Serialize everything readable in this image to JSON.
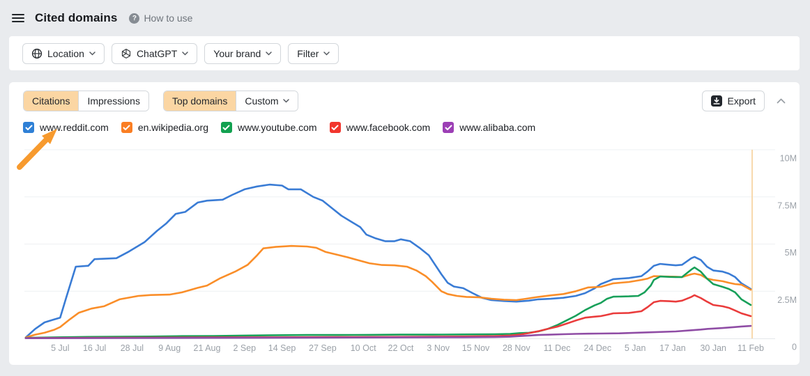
{
  "header": {
    "title": "Cited domains",
    "help_label": "How to use"
  },
  "filter_bar": {
    "buttons": [
      {
        "label": "Location",
        "icon": "globe-icon"
      },
      {
        "label": "ChatGPT",
        "icon": "chatgpt-icon"
      },
      {
        "label": "Your brand",
        "icon": null
      },
      {
        "label": "Filter",
        "icon": null
      }
    ]
  },
  "toolbar": {
    "metric_tabs": [
      {
        "label": "Citations",
        "active": true
      },
      {
        "label": "Impressions",
        "active": false
      }
    ],
    "domain_tabs": [
      {
        "label": "Top domains",
        "active": true
      },
      {
        "label": "Custom",
        "active": false,
        "has_chevron": true
      }
    ],
    "export_label": "Export"
  },
  "legend": {
    "items": [
      {
        "label": "www.reddit.com",
        "color": "#2f80d6",
        "checked": true
      },
      {
        "label": "en.wikipedia.org",
        "color": "#fa7e23",
        "checked": true
      },
      {
        "label": "www.youtube.com",
        "color": "#12a150",
        "checked": true
      },
      {
        "label": "www.facebook.com",
        "color": "#f2362e",
        "checked": true
      },
      {
        "label": "www.alibaba.com",
        "color": "#9c3fb5",
        "checked": true
      }
    ]
  },
  "annotation": {
    "type": "arrow",
    "points_to": "www.reddit.com",
    "color": "#f79a2e"
  },
  "chart_data": {
    "type": "line",
    "unit": "citations",
    "ylim": [
      0,
      10000000
    ],
    "grid": true,
    "legend_position": "top",
    "x_max_day": 232,
    "x_ticks": [
      {
        "label": "5 Jul",
        "day": 11
      },
      {
        "label": "16 Jul",
        "day": 22
      },
      {
        "label": "28 Jul",
        "day": 34
      },
      {
        "label": "9 Aug",
        "day": 46
      },
      {
        "label": "21 Aug",
        "day": 58
      },
      {
        "label": "2 Sep",
        "day": 70
      },
      {
        "label": "14 Sep",
        "day": 82
      },
      {
        "label": "27 Sep",
        "day": 95
      },
      {
        "label": "10 Oct",
        "day": 108
      },
      {
        "label": "22 Oct",
        "day": 120
      },
      {
        "label": "3 Nov",
        "day": 132
      },
      {
        "label": "15 Nov",
        "day": 144
      },
      {
        "label": "28 Nov",
        "day": 157
      },
      {
        "label": "11 Dec",
        "day": 170
      },
      {
        "label": "24 Dec",
        "day": 183
      },
      {
        "label": "5 Jan",
        "day": 195
      },
      {
        "label": "17 Jan",
        "day": 207
      },
      {
        "label": "30 Jan",
        "day": 220
      },
      {
        "label": "11 Feb",
        "day": 232
      }
    ],
    "y_ticks": [
      {
        "label": "0",
        "value": 0
      },
      {
        "label": "2.5M",
        "value": 2.5
      },
      {
        "label": "5M",
        "value": 5
      },
      {
        "label": "7.5M",
        "value": 7.5
      },
      {
        "label": "10M",
        "value": 10
      }
    ],
    "marker": {
      "day": 232,
      "color": "#f8d9ad"
    },
    "series": [
      {
        "name": "www.reddit.com",
        "color": "#3a7cd5",
        "values_unit": "millions",
        "points": [
          [
            0,
            0.05
          ],
          [
            3,
            0.5
          ],
          [
            6,
            0.85
          ],
          [
            9,
            1.0
          ],
          [
            11,
            1.1
          ],
          [
            13,
            2.2
          ],
          [
            16,
            3.8
          ],
          [
            20,
            3.85
          ],
          [
            22,
            4.2
          ],
          [
            29,
            4.25
          ],
          [
            33,
            4.6
          ],
          [
            38,
            5.1
          ],
          [
            42,
            5.7
          ],
          [
            45,
            6.1
          ],
          [
            48,
            6.6
          ],
          [
            51,
            6.7
          ],
          [
            55,
            7.2
          ],
          [
            58,
            7.3
          ],
          [
            63,
            7.35
          ],
          [
            66,
            7.6
          ],
          [
            70,
            7.9
          ],
          [
            74,
            8.05
          ],
          [
            78,
            8.15
          ],
          [
            82,
            8.1
          ],
          [
            84,
            7.9
          ],
          [
            88,
            7.9
          ],
          [
            92,
            7.5
          ],
          [
            95,
            7.3
          ],
          [
            98,
            6.9
          ],
          [
            101,
            6.5
          ],
          [
            104,
            6.2
          ],
          [
            107,
            5.9
          ],
          [
            109,
            5.5
          ],
          [
            112,
            5.3
          ],
          [
            115,
            5.15
          ],
          [
            118,
            5.15
          ],
          [
            120,
            5.25
          ],
          [
            123,
            5.15
          ],
          [
            126,
            4.8
          ],
          [
            129,
            4.4
          ],
          [
            131,
            3.9
          ],
          [
            133,
            3.4
          ],
          [
            135,
            2.95
          ],
          [
            137,
            2.75
          ],
          [
            140,
            2.66
          ],
          [
            143,
            2.4
          ],
          [
            146,
            2.15
          ],
          [
            149,
            2.03
          ],
          [
            153,
            1.98
          ],
          [
            157,
            1.95
          ],
          [
            161,
            2.0
          ],
          [
            164,
            2.07
          ],
          [
            168,
            2.1
          ],
          [
            172,
            2.15
          ],
          [
            176,
            2.25
          ],
          [
            179,
            2.4
          ],
          [
            182,
            2.65
          ],
          [
            184,
            2.88
          ],
          [
            188,
            3.14
          ],
          [
            193,
            3.2
          ],
          [
            197,
            3.3
          ],
          [
            199,
            3.55
          ],
          [
            201,
            3.85
          ],
          [
            203,
            3.95
          ],
          [
            206,
            3.9
          ],
          [
            208,
            3.87
          ],
          [
            210,
            3.9
          ],
          [
            213,
            4.25
          ],
          [
            214,
            4.32
          ],
          [
            216,
            4.16
          ],
          [
            218,
            3.8
          ],
          [
            220,
            3.6
          ],
          [
            223,
            3.54
          ],
          [
            225,
            3.43
          ],
          [
            227,
            3.25
          ],
          [
            229,
            2.92
          ],
          [
            232,
            2.62
          ]
        ]
      },
      {
        "name": "en.wikipedia.org",
        "color": "#fa8e29",
        "values_unit": "millions",
        "points": [
          [
            0,
            0.05
          ],
          [
            3,
            0.2
          ],
          [
            6,
            0.3
          ],
          [
            9,
            0.45
          ],
          [
            11,
            0.6
          ],
          [
            14,
            1.0
          ],
          [
            17,
            1.36
          ],
          [
            21,
            1.58
          ],
          [
            25,
            1.7
          ],
          [
            30,
            2.07
          ],
          [
            36,
            2.25
          ],
          [
            40,
            2.3
          ],
          [
            46,
            2.32
          ],
          [
            50,
            2.44
          ],
          [
            55,
            2.68
          ],
          [
            58,
            2.8
          ],
          [
            62,
            3.17
          ],
          [
            67,
            3.54
          ],
          [
            71,
            3.9
          ],
          [
            74,
            4.4
          ],
          [
            76,
            4.77
          ],
          [
            80,
            4.85
          ],
          [
            85,
            4.9
          ],
          [
            90,
            4.87
          ],
          [
            93,
            4.8
          ],
          [
            96,
            4.58
          ],
          [
            99,
            4.46
          ],
          [
            103,
            4.3
          ],
          [
            106,
            4.16
          ],
          [
            110,
            3.98
          ],
          [
            114,
            3.89
          ],
          [
            118,
            3.87
          ],
          [
            122,
            3.8
          ],
          [
            125,
            3.6
          ],
          [
            128,
            3.3
          ],
          [
            130,
            3.0
          ],
          [
            133,
            2.5
          ],
          [
            135,
            2.35
          ],
          [
            138,
            2.25
          ],
          [
            141,
            2.2
          ],
          [
            145,
            2.18
          ],
          [
            149,
            2.1
          ],
          [
            153,
            2.05
          ],
          [
            157,
            2.03
          ],
          [
            160,
            2.1
          ],
          [
            164,
            2.2
          ],
          [
            168,
            2.28
          ],
          [
            172,
            2.35
          ],
          [
            176,
            2.5
          ],
          [
            180,
            2.7
          ],
          [
            184,
            2.73
          ],
          [
            188,
            2.92
          ],
          [
            193,
            2.99
          ],
          [
            197,
            3.1
          ],
          [
            199,
            3.17
          ],
          [
            201,
            3.3
          ],
          [
            204,
            3.28
          ],
          [
            208,
            3.27
          ],
          [
            210,
            3.25
          ],
          [
            213,
            3.4
          ],
          [
            214,
            3.43
          ],
          [
            216,
            3.36
          ],
          [
            218,
            3.17
          ],
          [
            220,
            3.1
          ],
          [
            223,
            3.03
          ],
          [
            225,
            2.95
          ],
          [
            227,
            2.88
          ],
          [
            229,
            2.85
          ],
          [
            232,
            2.58
          ]
        ]
      },
      {
        "name": "www.youtube.com",
        "color": "#18a05a",
        "values_unit": "millions",
        "points": [
          [
            0,
            0.03
          ],
          [
            10,
            0.06
          ],
          [
            20,
            0.08
          ],
          [
            30,
            0.09
          ],
          [
            40,
            0.1
          ],
          [
            50,
            0.12
          ],
          [
            60,
            0.13
          ],
          [
            70,
            0.15
          ],
          [
            80,
            0.17
          ],
          [
            90,
            0.18
          ],
          [
            100,
            0.18
          ],
          [
            110,
            0.19
          ],
          [
            120,
            0.2
          ],
          [
            130,
            0.2
          ],
          [
            140,
            0.21
          ],
          [
            150,
            0.22
          ],
          [
            155,
            0.24
          ],
          [
            158,
            0.28
          ],
          [
            161,
            0.3
          ],
          [
            164,
            0.37
          ],
          [
            167,
            0.5
          ],
          [
            170,
            0.7
          ],
          [
            173,
            0.95
          ],
          [
            176,
            1.2
          ],
          [
            179,
            1.5
          ],
          [
            182,
            1.75
          ],
          [
            184,
            1.88
          ],
          [
            186,
            2.1
          ],
          [
            188,
            2.21
          ],
          [
            193,
            2.23
          ],
          [
            196,
            2.25
          ],
          [
            198,
            2.44
          ],
          [
            200,
            2.8
          ],
          [
            201,
            3.1
          ],
          [
            203,
            3.28
          ],
          [
            206,
            3.26
          ],
          [
            208,
            3.25
          ],
          [
            210,
            3.25
          ],
          [
            213,
            3.65
          ],
          [
            214,
            3.76
          ],
          [
            216,
            3.54
          ],
          [
            218,
            3.17
          ],
          [
            220,
            2.88
          ],
          [
            223,
            2.73
          ],
          [
            225,
            2.62
          ],
          [
            227,
            2.44
          ],
          [
            229,
            2.07
          ],
          [
            232,
            1.77
          ]
        ]
      },
      {
        "name": "www.facebook.com",
        "color": "#ea3c3c",
        "values_unit": "millions",
        "points": [
          [
            0,
            0.02
          ],
          [
            20,
            0.03
          ],
          [
            40,
            0.04
          ],
          [
            60,
            0.05
          ],
          [
            80,
            0.06
          ],
          [
            100,
            0.07
          ],
          [
            120,
            0.08
          ],
          [
            140,
            0.1
          ],
          [
            150,
            0.12
          ],
          [
            155,
            0.15
          ],
          [
            158,
            0.2
          ],
          [
            161,
            0.28
          ],
          [
            164,
            0.38
          ],
          [
            167,
            0.5
          ],
          [
            170,
            0.62
          ],
          [
            173,
            0.78
          ],
          [
            176,
            0.95
          ],
          [
            179,
            1.1
          ],
          [
            182,
            1.15
          ],
          [
            184,
            1.18
          ],
          [
            186,
            1.25
          ],
          [
            188,
            1.33
          ],
          [
            193,
            1.35
          ],
          [
            197,
            1.44
          ],
          [
            199,
            1.66
          ],
          [
            201,
            1.92
          ],
          [
            203,
            1.99
          ],
          [
            206,
            1.97
          ],
          [
            208,
            1.95
          ],
          [
            210,
            2.0
          ],
          [
            213,
            2.2
          ],
          [
            214,
            2.29
          ],
          [
            216,
            2.14
          ],
          [
            218,
            1.95
          ],
          [
            220,
            1.77
          ],
          [
            223,
            1.7
          ],
          [
            225,
            1.62
          ],
          [
            227,
            1.48
          ],
          [
            229,
            1.33
          ],
          [
            232,
            1.18
          ]
        ]
      },
      {
        "name": "www.alibaba.com",
        "color": "#8f4da5",
        "values_unit": "millions",
        "points": [
          [
            0,
            0.01
          ],
          [
            30,
            0.02
          ],
          [
            60,
            0.03
          ],
          [
            90,
            0.04
          ],
          [
            120,
            0.05
          ],
          [
            140,
            0.06
          ],
          [
            150,
            0.07
          ],
          [
            155,
            0.09
          ],
          [
            158,
            0.12
          ],
          [
            161,
            0.15
          ],
          [
            164,
            0.18
          ],
          [
            168,
            0.2
          ],
          [
            172,
            0.22
          ],
          [
            176,
            0.24
          ],
          [
            180,
            0.25
          ],
          [
            184,
            0.26
          ],
          [
            190,
            0.27
          ],
          [
            195,
            0.3
          ],
          [
            201,
            0.33
          ],
          [
            208,
            0.37
          ],
          [
            213,
            0.43
          ],
          [
            216,
            0.47
          ],
          [
            218,
            0.5
          ],
          [
            223,
            0.55
          ],
          [
            227,
            0.6
          ],
          [
            229,
            0.63
          ],
          [
            232,
            0.66
          ]
        ]
      }
    ]
  }
}
